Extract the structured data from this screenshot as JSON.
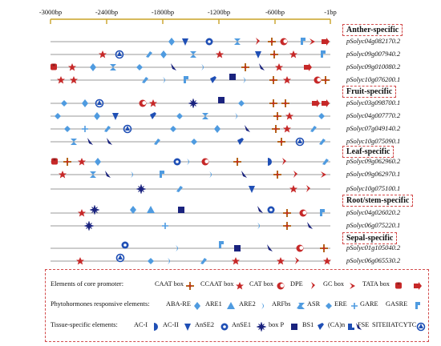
{
  "axis": {
    "ticks": [
      "-3000bp",
      "-2400bp",
      "-1800bp",
      "-1200bp",
      "-600bp",
      "-1bp"
    ]
  },
  "groups": [
    {
      "label": "Anther-specific",
      "genes": [
        "pSolyc04g082170.2",
        "pSolyc09g007940.2",
        "pSolyc09g010080.2",
        "pSolyc10g076200.1"
      ]
    },
    {
      "label": "Fruit-specific",
      "genes": [
        "pSolyc03g098700.1",
        "pSolyc04g007770.2",
        "pSolyc07g049140.2",
        "pSolyc10g075090.1"
      ]
    },
    {
      "label": "Leaf-specific",
      "genes": [
        "pSolyc09g062960.2",
        "pSolyc09g062970.1",
        "pSolyc10g075100.1"
      ]
    },
    {
      "label": "Root/stem-specific",
      "genes": [
        "pSolyc04g026020.2",
        "pSolyc06g075220.1"
      ]
    },
    {
      "label": "Sepal-specific",
      "genes": [
        "pSolyc01g105040.2",
        "pSolyc06g065530.2"
      ]
    }
  ],
  "legend": {
    "core": {
      "title": "Elements of core promoter:",
      "items": [
        "CAAT box",
        "CCAAT box",
        "CAT box",
        "DPE",
        "GC box",
        "TATA box"
      ]
    },
    "hormone": {
      "title": "Phytohormones responsive elements:",
      "items": [
        "ABA-RE",
        "ARE1",
        "ARE2",
        "ARFbs",
        "ASR",
        "ERE",
        "GARE",
        "GASRE"
      ]
    },
    "tissue": {
      "title": "Tissue-specific elements:",
      "items": [
        "AC-I",
        "AC-II",
        "AnSE2",
        "AnSE1",
        "box P",
        "BS1",
        "(CA)n",
        "FSE",
        "SITEIIATCYTC"
      ]
    }
  },
  "colors": {
    "axis": "#c9a227",
    "line": "#999999",
    "red": "#c62828",
    "dark_red": "#8e1b1b",
    "brown": "#b5651d",
    "blue": "#1f4fb5",
    "light_blue": "#4f9be0",
    "navy": "#1a237e",
    "frame": "#d24b4b",
    "shadow": "#f4a6c8"
  }
}
